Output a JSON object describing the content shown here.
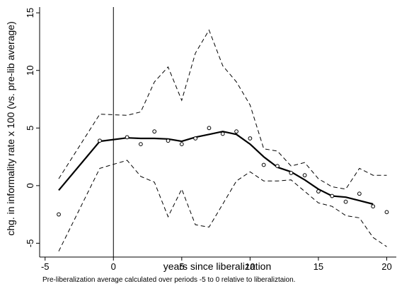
{
  "chart_data": {
    "type": "line",
    "xlabel": "years since liberalization",
    "ylabel": "chg. in informality rate x 100 (vs. pre-lib average)",
    "note": "Pre-liberalization average calculated over periods -5 to 0 relative to liberaliztaion.",
    "xlim": [
      -5.4,
      20.7
    ],
    "ylim": [
      -6.2,
      15.5
    ],
    "xticks": [
      -5,
      0,
      5,
      10,
      15,
      20
    ],
    "yticks": [
      -5,
      0,
      5,
      10,
      15
    ],
    "vertical_line_x": 0,
    "scatter": {
      "x": [
        -4,
        -1,
        1,
        2,
        3,
        4,
        5,
        6,
        7,
        8,
        9,
        10,
        11,
        12,
        13,
        14,
        15,
        16,
        17,
        18,
        19,
        20
      ],
      "y": [
        -2.5,
        3.9,
        4.2,
        3.6,
        4.7,
        3.9,
        3.6,
        4.1,
        5.0,
        4.5,
        4.7,
        4.1,
        1.8,
        1.7,
        1.1,
        0.9,
        -0.5,
        -0.9,
        -1.4,
        -0.7,
        -1.8,
        -2.3
      ]
    },
    "fit_line": {
      "x": [
        -4,
        -1,
        1,
        2,
        3,
        4,
        5,
        6,
        7,
        8,
        9,
        10,
        11,
        12,
        13,
        14,
        15,
        16,
        17,
        18,
        19
      ],
      "y": [
        -0.4,
        3.85,
        4.15,
        4.1,
        4.1,
        4.05,
        3.85,
        4.2,
        4.45,
        4.7,
        4.45,
        3.6,
        2.5,
        1.6,
        1.2,
        0.5,
        -0.3,
        -0.9,
        -1.0,
        -1.3,
        -1.6
      ]
    },
    "upper_band": {
      "x": [
        -4,
        -1,
        1,
        2,
        3,
        4,
        5,
        6,
        7,
        8,
        9,
        10,
        11,
        12,
        13,
        14,
        15,
        16,
        17,
        18,
        19,
        20
      ],
      "y": [
        0.6,
        6.2,
        6.1,
        6.4,
        9.0,
        10.3,
        7.4,
        11.5,
        13.5,
        10.4,
        9.0,
        7.0,
        3.2,
        3.0,
        1.7,
        2.0,
        0.6,
        -0.1,
        -0.3,
        1.5,
        0.9,
        0.9
      ]
    },
    "lower_band": {
      "x": [
        -4,
        -1,
        1,
        2,
        3,
        4,
        5,
        6,
        7,
        8,
        9,
        10,
        11,
        12,
        13,
        14,
        15,
        16,
        17,
        18,
        19,
        20
      ],
      "y": [
        -5.7,
        1.5,
        2.2,
        0.8,
        0.3,
        -2.7,
        -0.3,
        -3.4,
        -3.6,
        -1.6,
        0.4,
        1.2,
        0.4,
        0.4,
        0.5,
        -0.5,
        -1.5,
        -1.8,
        -2.6,
        -2.8,
        -4.5,
        -5.3
      ]
    }
  }
}
